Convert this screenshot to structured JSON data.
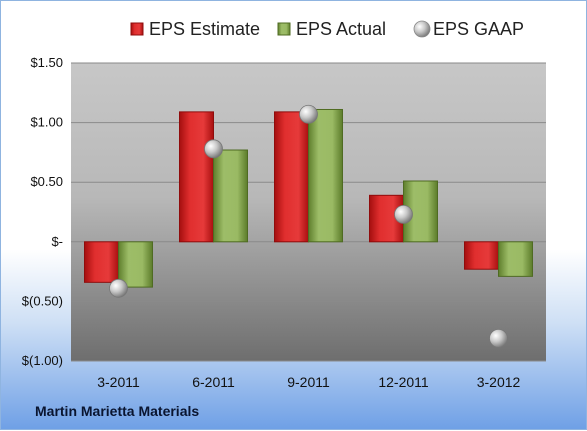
{
  "company": "Martin Marietta Materials",
  "chart_data": {
    "type": "bar",
    "categories": [
      "3-2011",
      "6-2011",
      "9-2011",
      "12-2011",
      "3-2012"
    ],
    "series": [
      {
        "name": "EPS Estimate",
        "type": "bar",
        "color": "#d42a2a",
        "values": [
          -0.34,
          1.09,
          1.09,
          0.39,
          -0.23
        ]
      },
      {
        "name": "EPS Actual",
        "type": "bar",
        "color": "#8db05a",
        "values": [
          -0.38,
          0.77,
          1.11,
          0.51,
          -0.29
        ]
      },
      {
        "name": "EPS GAAP",
        "type": "marker",
        "color": "#b8b8b8",
        "values": [
          -0.39,
          0.78,
          1.07,
          0.23,
          -0.81
        ]
      }
    ],
    "y_ticks": [
      1.5,
      1.0,
      0.5,
      0,
      -0.5,
      -1.0
    ],
    "y_tick_labels": [
      "$1.50",
      "$1.00",
      "$0.50",
      "$-",
      "$(0.50)",
      "$(1.00)"
    ],
    "ylim": [
      -1.0,
      1.5
    ],
    "grid": true,
    "legend_position": "top",
    "title": "",
    "xlabel": "",
    "ylabel": ""
  }
}
